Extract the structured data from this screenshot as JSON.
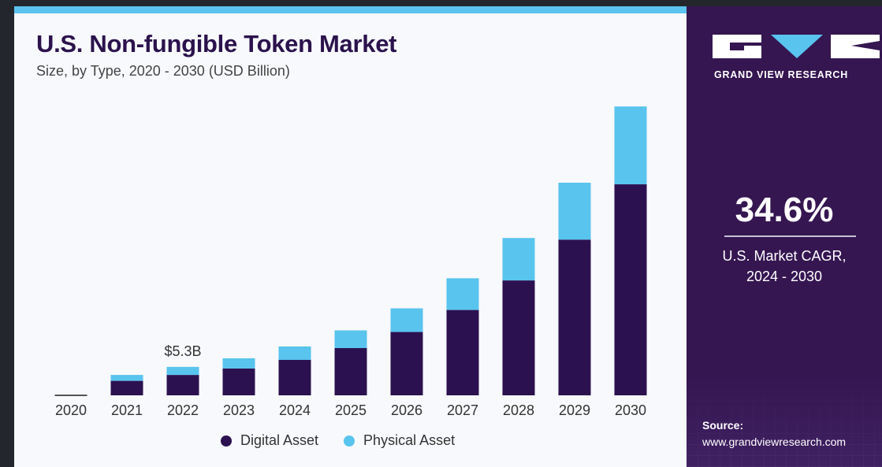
{
  "colors": {
    "digital": "#2c1150",
    "physical": "#59c4ee",
    "sidebar": "#351651",
    "accent_bar": "#5cc4ee"
  },
  "chart_data": {
    "type": "bar",
    "stacked": true,
    "title": "U.S. Non-fungible Token Market",
    "subtitle": "Size, by Type, 2020 - 2030 (USD Billion)",
    "categories": [
      "2020",
      "2021",
      "2022",
      "2023",
      "2024",
      "2025",
      "2026",
      "2027",
      "2028",
      "2029",
      "2030"
    ],
    "series": [
      {
        "name": "Digital Asset",
        "color": "#2c1150",
        "values": [
          0.1,
          2.7,
          3.8,
          5.0,
          6.6,
          8.8,
          11.8,
          15.9,
          21.4,
          29.0,
          39.3
        ]
      },
      {
        "name": "Physical Asset",
        "color": "#59c4ee",
        "values": [
          0.0,
          1.1,
          1.5,
          1.9,
          2.5,
          3.3,
          4.4,
          5.9,
          7.9,
          10.6,
          14.5
        ]
      }
    ],
    "ylim": [
      0,
      55
    ],
    "grid": false,
    "legend_position": "bottom",
    "annotations": [
      {
        "category": "2022",
        "text": "$5.3B"
      }
    ]
  },
  "sidebar": {
    "brand": "GRAND VIEW RESEARCH",
    "cagr_value": "34.6%",
    "cagr_label_line1": "U.S. Market CAGR,",
    "cagr_label_line2": "2024 - 2030",
    "source_label": "Source:",
    "source_url": "www.grandviewresearch.com"
  }
}
